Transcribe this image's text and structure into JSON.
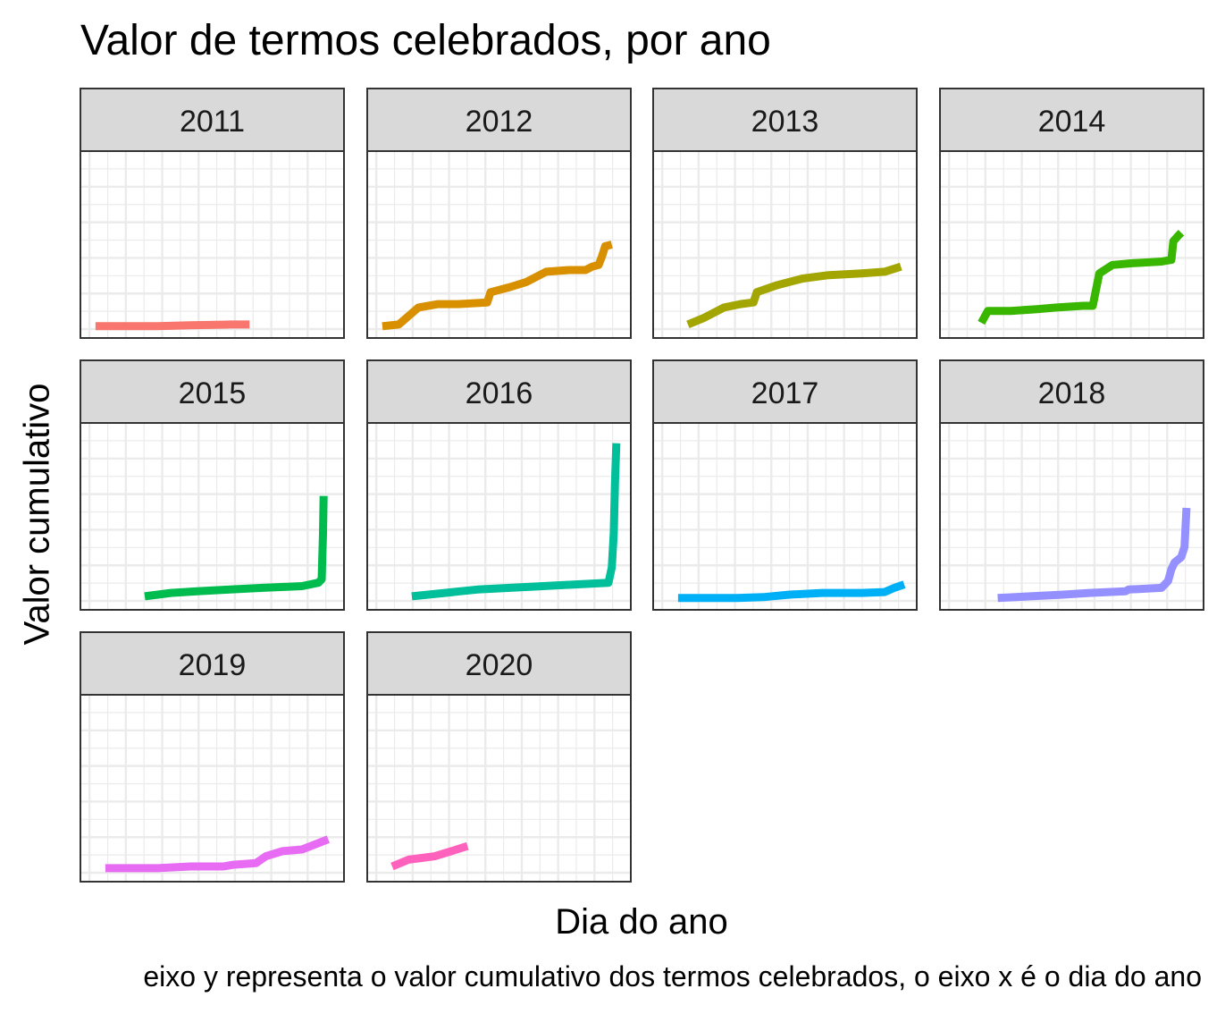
{
  "chart_data": {
    "type": "line",
    "title": "Valor de termos celebrados, por ano",
    "xlabel": "Dia do ano",
    "ylabel": "Valor cumulativo",
    "caption": "eixo y representa o valor cumulativo dos termos celebrados, o eixo x é o dia do ano",
    "x_ticks_shown": false,
    "y_ticks_shown": false,
    "grid": true,
    "legend": "none",
    "facet_by": "ano",
    "xlim": [
      0,
      366
    ],
    "ylim": [
      0,
      1
    ],
    "series": [
      {
        "name": "2011",
        "color": "#F8766D",
        "x": [
          5,
          50,
          100,
          150,
          210,
          240
        ],
        "y": [
          0.02,
          0.02,
          0.02,
          0.025,
          0.03,
          0.03
        ]
      },
      {
        "name": "2012",
        "color": "#D89000",
        "x": [
          5,
          30,
          60,
          90,
          120,
          165,
          170,
          200,
          225,
          255,
          290,
          315,
          325,
          335,
          340,
          345,
          355
        ],
        "y": [
          0.02,
          0.03,
          0.13,
          0.15,
          0.15,
          0.16,
          0.22,
          0.25,
          0.28,
          0.34,
          0.35,
          0.35,
          0.37,
          0.38,
          0.43,
          0.49,
          0.5
        ]
      },
      {
        "name": "2013",
        "color": "#A3A500",
        "x": [
          35,
          60,
          90,
          115,
          135,
          140,
          170,
          210,
          250,
          300,
          335,
          360
        ],
        "y": [
          0.03,
          0.07,
          0.13,
          0.15,
          0.16,
          0.22,
          0.26,
          0.3,
          0.32,
          0.33,
          0.34,
          0.37
        ]
      },
      {
        "name": "2014",
        "color": "#39B600",
        "x": [
          45,
          55,
          90,
          130,
          160,
          200,
          215,
          225,
          245,
          275,
          320,
          335,
          338,
          345,
          350
        ],
        "y": [
          0.04,
          0.11,
          0.11,
          0.12,
          0.13,
          0.14,
          0.14,
          0.33,
          0.38,
          0.39,
          0.4,
          0.41,
          0.52,
          0.55,
          0.57
        ]
      },
      {
        "name": "2015",
        "color": "#00BB4E",
        "x": [
          80,
          120,
          160,
          210,
          260,
          320,
          345,
          350,
          352,
          353
        ],
        "y": [
          0.03,
          0.05,
          0.06,
          0.07,
          0.08,
          0.09,
          0.11,
          0.13,
          0.4,
          0.62
        ]
      },
      {
        "name": "2016",
        "color": "#00BF9A",
        "x": [
          50,
          100,
          150,
          200,
          250,
          300,
          350,
          355,
          358,
          360,
          362
        ],
        "y": [
          0.03,
          0.05,
          0.07,
          0.08,
          0.09,
          0.1,
          0.11,
          0.2,
          0.4,
          0.7,
          0.93
        ]
      },
      {
        "name": "2017",
        "color": "#00B0F6",
        "x": [
          20,
          60,
          110,
          150,
          190,
          240,
          300,
          335,
          350,
          365
        ],
        "y": [
          0.02,
          0.02,
          0.02,
          0.025,
          0.04,
          0.05,
          0.05,
          0.055,
          0.08,
          0.1
        ]
      },
      {
        "name": "2018",
        "color": "#9590FF",
        "x": [
          70,
          120,
          170,
          210,
          265,
          270,
          320,
          330,
          335,
          340,
          350,
          355,
          358
        ],
        "y": [
          0.02,
          0.03,
          0.04,
          0.05,
          0.06,
          0.07,
          0.08,
          0.12,
          0.19,
          0.23,
          0.26,
          0.32,
          0.55
        ]
      },
      {
        "name": "2019",
        "color": "#E76BF3",
        "x": [
          20,
          60,
          100,
          150,
          200,
          215,
          250,
          265,
          290,
          320,
          340,
          360
        ],
        "y": [
          0.03,
          0.03,
          0.03,
          0.04,
          0.04,
          0.05,
          0.06,
          0.1,
          0.13,
          0.14,
          0.17,
          0.2
        ]
      },
      {
        "name": "2020",
        "color": "#FF62BC",
        "x": [
          20,
          45,
          65,
          85,
          110,
          135
        ],
        "y": [
          0.04,
          0.08,
          0.09,
          0.1,
          0.13,
          0.16
        ]
      }
    ]
  }
}
